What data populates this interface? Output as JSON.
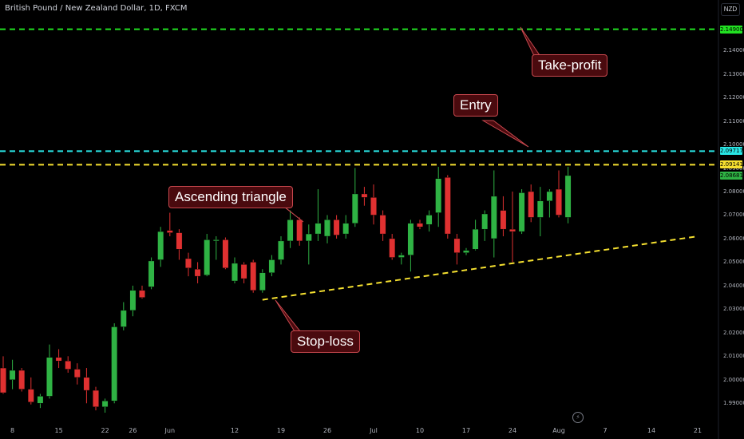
{
  "header": {
    "title": "British Pound / New Zealand Dollar, 1D, FXCM",
    "currency": "NZD"
  },
  "colors": {
    "up": "#26a69a",
    "up_body": "#2fb344",
    "down": "#e03131",
    "take_profit": "#22e022",
    "entry": "#29e6e6",
    "current": "#f5e030",
    "stop_trend": "#f5e030",
    "callout_bg": "#4a0a0e",
    "callout_border": "#c8484e"
  },
  "chart_data": {
    "type": "candlestick",
    "symbol": "GBPNZD",
    "timeframe": "1D",
    "ylim": [
      1.985,
      2.156
    ],
    "y_ticks": [
      "2.14000",
      "2.13000",
      "2.12000",
      "2.11000",
      "2.10000",
      "2.09000",
      "2.08000",
      "2.07000",
      "2.06000",
      "2.05000",
      "2.04000",
      "2.03000",
      "2.02000",
      "2.01000",
      "2.00000",
      "1.99000"
    ],
    "x_ticks": [
      {
        "label": "8",
        "i": 1
      },
      {
        "label": "15",
        "i": 6
      },
      {
        "label": "22",
        "i": 11
      },
      {
        "label": "26",
        "i": 14
      },
      {
        "label": "Jun",
        "i": 18
      },
      {
        "label": "12",
        "i": 25
      },
      {
        "label": "19",
        "i": 30
      },
      {
        "label": "26",
        "i": 35
      },
      {
        "label": "Jul",
        "i": 40
      },
      {
        "label": "10",
        "i": 45
      },
      {
        "label": "17",
        "i": 50
      },
      {
        "label": "24",
        "i": 55
      },
      {
        "label": "Aug",
        "i": 60
      },
      {
        "label": "7",
        "i": 65
      },
      {
        "label": "14",
        "i": 70
      },
      {
        "label": "21",
        "i": 75
      }
    ],
    "candles": [
      {
        "o": 2.005,
        "h": 2.01,
        "l": 1.994,
        "c": 1.9945
      },
      {
        "o": 2.0,
        "h": 2.0085,
        "l": 1.996,
        "c": 2.004
      },
      {
        "o": 2.004,
        "h": 2.005,
        "l": 1.995,
        "c": 1.996
      },
      {
        "o": 1.996,
        "h": 2.001,
        "l": 1.9895,
        "c": 1.9905
      },
      {
        "o": 1.99,
        "h": 1.994,
        "l": 1.988,
        "c": 1.993
      },
      {
        "o": 1.993,
        "h": 2.015,
        "l": 1.992,
        "c": 2.0095
      },
      {
        "o": 2.0095,
        "h": 2.013,
        "l": 2.005,
        "c": 2.008
      },
      {
        "o": 2.008,
        "h": 2.01,
        "l": 2.003,
        "c": 2.0045
      },
      {
        "o": 2.0045,
        "h": 2.007,
        "l": 1.998,
        "c": 2.001
      },
      {
        "o": 2.001,
        "h": 2.005,
        "l": 1.99,
        "c": 1.9955
      },
      {
        "o": 1.9955,
        "h": 1.997,
        "l": 1.987,
        "c": 1.9885
      },
      {
        "o": 1.9885,
        "h": 1.992,
        "l": 1.986,
        "c": 1.991
      },
      {
        "o": 1.991,
        "h": 2.024,
        "l": 1.99,
        "c": 2.0225
      },
      {
        "o": 2.0225,
        "h": 2.033,
        "l": 2.021,
        "c": 2.0295
      },
      {
        "o": 2.0295,
        "h": 2.04,
        "l": 2.027,
        "c": 2.038
      },
      {
        "o": 2.038,
        "h": 2.04,
        "l": 2.0345,
        "c": 2.035
      },
      {
        "o": 2.0395,
        "h": 2.052,
        "l": 2.0385,
        "c": 2.0505
      },
      {
        "o": 2.051,
        "h": 2.065,
        "l": 2.048,
        "c": 2.063
      },
      {
        "o": 2.0635,
        "h": 2.071,
        "l": 2.061,
        "c": 2.0625
      },
      {
        "o": 2.0625,
        "h": 2.064,
        "l": 2.051,
        "c": 2.0555
      },
      {
        "o": 2.0515,
        "h": 2.054,
        "l": 2.044,
        "c": 2.0475
      },
      {
        "o": 2.047,
        "h": 2.05,
        "l": 2.041,
        "c": 2.044
      },
      {
        "o": 2.0445,
        "h": 2.062,
        "l": 2.044,
        "c": 2.0595
      },
      {
        "o": 2.0595,
        "h": 2.061,
        "l": 2.051,
        "c": 2.0595
      },
      {
        "o": 2.0595,
        "h": 2.0605,
        "l": 2.047,
        "c": 2.0475
      },
      {
        "o": 2.042,
        "h": 2.052,
        "l": 2.041,
        "c": 2.0495
      },
      {
        "o": 2.049,
        "h": 2.05,
        "l": 2.041,
        "c": 2.043
      },
      {
        "o": 2.05,
        "h": 2.051,
        "l": 2.037,
        "c": 2.038
      },
      {
        "o": 2.038,
        "h": 2.047,
        "l": 2.037,
        "c": 2.0455
      },
      {
        "o": 2.0455,
        "h": 2.053,
        "l": 2.044,
        "c": 2.051
      },
      {
        "o": 2.051,
        "h": 2.061,
        "l": 2.049,
        "c": 2.059
      },
      {
        "o": 2.059,
        "h": 2.072,
        "l": 2.056,
        "c": 2.068
      },
      {
        "o": 2.068,
        "h": 2.069,
        "l": 2.057,
        "c": 2.059
      },
      {
        "o": 2.059,
        "h": 2.066,
        "l": 2.049,
        "c": 2.062
      },
      {
        "o": 2.062,
        "h": 2.081,
        "l": 2.059,
        "c": 2.0665
      },
      {
        "o": 2.061,
        "h": 2.07,
        "l": 2.058,
        "c": 2.068
      },
      {
        "o": 2.068,
        "h": 2.07,
        "l": 2.06,
        "c": 2.0615
      },
      {
        "o": 2.062,
        "h": 2.07,
        "l": 2.06,
        "c": 2.0665
      },
      {
        "o": 2.0665,
        "h": 2.09,
        "l": 2.065,
        "c": 2.079
      },
      {
        "o": 2.079,
        "h": 2.082,
        "l": 2.074,
        "c": 2.0775
      },
      {
        "o": 2.0775,
        "h": 2.083,
        "l": 2.066,
        "c": 2.07
      },
      {
        "o": 2.07,
        "h": 2.072,
        "l": 2.059,
        "c": 2.062
      },
      {
        "o": 2.06,
        "h": 2.062,
        "l": 2.051,
        "c": 2.052
      },
      {
        "o": 2.052,
        "h": 2.054,
        "l": 2.049,
        "c": 2.053
      },
      {
        "o": 2.053,
        "h": 2.068,
        "l": 2.046,
        "c": 2.0665
      },
      {
        "o": 2.0665,
        "h": 2.068,
        "l": 2.064,
        "c": 2.065
      },
      {
        "o": 2.066,
        "h": 2.072,
        "l": 2.063,
        "c": 2.07
      },
      {
        "o": 2.071,
        "h": 2.0905,
        "l": 2.065,
        "c": 2.0855
      },
      {
        "o": 2.086,
        "h": 2.087,
        "l": 2.06,
        "c": 2.062
      },
      {
        "o": 2.06,
        "h": 2.062,
        "l": 2.049,
        "c": 2.054
      },
      {
        "o": 2.054,
        "h": 2.056,
        "l": 2.053,
        "c": 2.055
      },
      {
        "o": 2.0555,
        "h": 2.068,
        "l": 2.055,
        "c": 2.064
      },
      {
        "o": 2.064,
        "h": 2.072,
        "l": 2.059,
        "c": 2.0705
      },
      {
        "o": 2.06,
        "h": 2.089,
        "l": 2.052,
        "c": 2.078
      },
      {
        "o": 2.072,
        "h": 2.078,
        "l": 2.061,
        "c": 2.064
      },
      {
        "o": 2.064,
        "h": 2.08,
        "l": 2.05,
        "c": 2.063
      },
      {
        "o": 2.063,
        "h": 2.081,
        "l": 2.062,
        "c": 2.0795
      },
      {
        "o": 2.08,
        "h": 2.083,
        "l": 2.067,
        "c": 2.069
      },
      {
        "o": 2.069,
        "h": 2.082,
        "l": 2.061,
        "c": 2.076
      },
      {
        "o": 2.076,
        "h": 2.081,
        "l": 2.069,
        "c": 2.08
      },
      {
        "o": 2.081,
        "h": 2.089,
        "l": 2.069,
        "c": 2.07
      },
      {
        "o": 2.069,
        "h": 2.0905,
        "l": 2.0665,
        "c": 2.0868
      }
    ],
    "levels": [
      {
        "name": "take-profit",
        "value": 2.149,
        "label": "2.14900",
        "style": "dashed"
      },
      {
        "name": "entry",
        "value": 2.09717,
        "label": "2.09717",
        "style": "dashed"
      },
      {
        "name": "current",
        "value": 2.09141,
        "label": "2.09141",
        "style": "dashed"
      }
    ],
    "last_price": {
      "value": 2.08681,
      "label": "2.08681"
    },
    "trendline": {
      "from": {
        "i": 28,
        "y": 2.034
      },
      "to": {
        "i": 75,
        "y": 2.061
      }
    },
    "annotations": [
      {
        "name": "ascending-triangle",
        "text": "Ascending triangle"
      },
      {
        "name": "entry",
        "text": "Entry"
      },
      {
        "name": "take-profit",
        "text": "Take-profit"
      },
      {
        "name": "stop-loss",
        "text": "Stop-loss"
      }
    ]
  }
}
